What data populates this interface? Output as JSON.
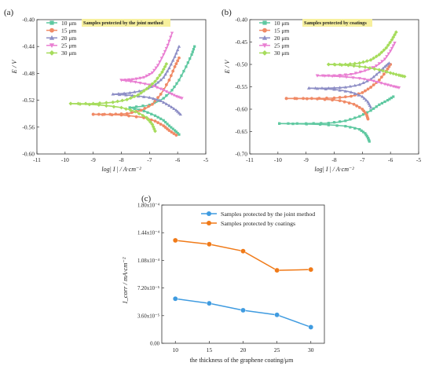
{
  "colors": {
    "s10": "#5ec8a0",
    "s15": "#f08a66",
    "s20": "#8e8fc6",
    "s25": "#e97fd2",
    "s30": "#a6dc5c",
    "blue": "#3f9be0",
    "orange": "#f07a18",
    "legend_bg": "#f7f09e"
  },
  "chart_data": [
    {
      "type": "line",
      "panel": "(a)",
      "title": "Samples protected by the joint method",
      "xlabel": "log| I | / A·cm⁻²",
      "ylabel": "E / V",
      "xlim": [
        -11,
        -5
      ],
      "ylim": [
        -0.6,
        -0.4
      ],
      "xticks": [
        "-11",
        "-10",
        "-9",
        "-8",
        "-7",
        "-6",
        "-5"
      ],
      "yticks": [
        "-0.60",
        "-0.56",
        "-0.52",
        "-0.48",
        "-0.44",
        "-0.40"
      ],
      "legend_position": "top-left",
      "series": [
        {
          "name": "10 μm",
          "color_key": "s10",
          "marker": "square",
          "anodic": [
            [
              -7.7,
              -0.531
            ],
            [
              -7.0,
              -0.527
            ],
            [
              -6.5,
              -0.517
            ],
            [
              -6.2,
              -0.505
            ],
            [
              -5.95,
              -0.49
            ],
            [
              -5.7,
              -0.47
            ],
            [
              -5.5,
              -0.452
            ],
            [
              -5.4,
              -0.44
            ]
          ],
          "cathodic": [
            [
              -7.7,
              -0.531
            ],
            [
              -7.2,
              -0.536
            ],
            [
              -6.8,
              -0.543
            ],
            [
              -6.5,
              -0.55
            ],
            [
              -6.3,
              -0.558
            ],
            [
              -6.1,
              -0.565
            ],
            [
              -5.95,
              -0.571
            ]
          ]
        },
        {
          "name": "15 μm",
          "color_key": "s15",
          "marker": "circle",
          "anodic": [
            [
              -9.0,
              -0.541
            ],
            [
              -8.4,
              -0.541
            ],
            [
              -7.8,
              -0.54
            ],
            [
              -7.3,
              -0.535
            ],
            [
              -6.9,
              -0.526
            ],
            [
              -6.6,
              -0.511
            ],
            [
              -6.3,
              -0.49
            ],
            [
              -6.1,
              -0.47
            ],
            [
              -5.95,
              -0.457
            ]
          ],
          "cathodic": [
            [
              -9.0,
              -0.541
            ],
            [
              -8.0,
              -0.542
            ],
            [
              -7.2,
              -0.546
            ],
            [
              -6.8,
              -0.551
            ],
            [
              -6.5,
              -0.558
            ],
            [
              -6.3,
              -0.565
            ],
            [
              -6.05,
              -0.572
            ]
          ]
        },
        {
          "name": "20 μm",
          "color_key": "s20",
          "marker": "triangle-up",
          "anodic": [
            [
              -8.3,
              -0.511
            ],
            [
              -7.7,
              -0.509
            ],
            [
              -7.2,
              -0.505
            ],
            [
              -6.8,
              -0.497
            ],
            [
              -6.5,
              -0.486
            ],
            [
              -6.3,
              -0.472
            ],
            [
              -6.1,
              -0.455
            ],
            [
              -5.95,
              -0.44
            ]
          ],
          "cathodic": [
            [
              -8.3,
              -0.511
            ],
            [
              -7.6,
              -0.513
            ],
            [
              -7.0,
              -0.516
            ],
            [
              -6.6,
              -0.521
            ],
            [
              -6.3,
              -0.528
            ],
            [
              -6.05,
              -0.535
            ],
            [
              -5.9,
              -0.541
            ]
          ]
        },
        {
          "name": "25 μm",
          "color_key": "s25",
          "marker": "triangle-down",
          "anodic": [
            [
              -8.0,
              -0.49
            ],
            [
              -7.6,
              -0.489
            ],
            [
              -7.2,
              -0.486
            ],
            [
              -6.9,
              -0.479
            ],
            [
              -6.7,
              -0.468
            ],
            [
              -6.5,
              -0.452
            ],
            [
              -6.35,
              -0.438
            ],
            [
              -6.2,
              -0.42
            ]
          ],
          "cathodic": [
            [
              -8.0,
              -0.49
            ],
            [
              -7.5,
              -0.493
            ],
            [
              -7.0,
              -0.497
            ],
            [
              -6.6,
              -0.503
            ],
            [
              -6.3,
              -0.509
            ],
            [
              -6.05,
              -0.514
            ],
            [
              -5.85,
              -0.517
            ]
          ]
        },
        {
          "name": "30 μm",
          "color_key": "s30",
          "marker": "diamond",
          "anodic": [
            [
              -9.8,
              -0.525
            ],
            [
              -9.0,
              -0.525
            ],
            [
              -8.3,
              -0.523
            ],
            [
              -7.8,
              -0.519
            ],
            [
              -7.4,
              -0.512
            ],
            [
              -7.1,
              -0.503
            ],
            [
              -6.8,
              -0.492
            ],
            [
              -6.55,
              -0.478
            ],
            [
              -6.4,
              -0.466
            ]
          ],
          "cathodic": [
            [
              -9.8,
              -0.525
            ],
            [
              -8.8,
              -0.527
            ],
            [
              -8.0,
              -0.531
            ],
            [
              -7.5,
              -0.537
            ],
            [
              -7.1,
              -0.546
            ],
            [
              -6.9,
              -0.556
            ],
            [
              -6.8,
              -0.566
            ]
          ]
        }
      ]
    },
    {
      "type": "line",
      "panel": "(b)",
      "title": "Samples protected by coatings",
      "xlabel": "log| I | / A·cm⁻²",
      "ylabel": "E / V",
      "xlim": [
        -11,
        -5
      ],
      "ylim": [
        -0.7,
        -0.4
      ],
      "xticks": [
        "-11",
        "-10",
        "-9",
        "-8",
        "-7",
        "-6",
        "-5"
      ],
      "yticks": [
        "-0.70",
        "-0.65",
        "-0.60",
        "-0.55",
        "-0.50",
        "-0.45",
        "-0.40"
      ],
      "legend_position": "top-left",
      "series": [
        {
          "name": "10 μm",
          "color_key": "s10",
          "marker": "square",
          "anodic": [
            [
              -9.95,
              -0.632
            ],
            [
              -9.0,
              -0.632
            ],
            [
              -8.2,
              -0.631
            ],
            [
              -7.6,
              -0.626
            ],
            [
              -7.1,
              -0.616
            ],
            [
              -6.7,
              -0.603
            ],
            [
              -6.4,
              -0.59
            ],
            [
              -6.1,
              -0.58
            ],
            [
              -5.9,
              -0.572
            ]
          ],
          "cathodic": [
            [
              -9.95,
              -0.632
            ],
            [
              -8.5,
              -0.634
            ],
            [
              -7.6,
              -0.638
            ],
            [
              -7.1,
              -0.645
            ],
            [
              -6.9,
              -0.654
            ],
            [
              -6.8,
              -0.664
            ],
            [
              -6.75,
              -0.672
            ]
          ]
        },
        {
          "name": "15 μm",
          "color_key": "s15",
          "marker": "circle",
          "anodic": [
            [
              -9.7,
              -0.576
            ],
            [
              -8.8,
              -0.576
            ],
            [
              -8.0,
              -0.575
            ],
            [
              -7.4,
              -0.571
            ],
            [
              -7.0,
              -0.563
            ],
            [
              -6.7,
              -0.551
            ],
            [
              -6.4,
              -0.535
            ],
            [
              -6.15,
              -0.515
            ],
            [
              -6.0,
              -0.5
            ]
          ],
          "cathodic": [
            [
              -9.7,
              -0.576
            ],
            [
              -8.6,
              -0.577
            ],
            [
              -7.8,
              -0.581
            ],
            [
              -7.3,
              -0.589
            ],
            [
              -7.0,
              -0.6
            ],
            [
              -6.85,
              -0.612
            ],
            [
              -6.8,
              -0.622
            ]
          ]
        },
        {
          "name": "20 μm",
          "color_key": "s20",
          "marker": "triangle-up",
          "anodic": [
            [
              -8.9,
              -0.553
            ],
            [
              -8.2,
              -0.553
            ],
            [
              -7.6,
              -0.551
            ],
            [
              -7.1,
              -0.545
            ],
            [
              -6.7,
              -0.533
            ],
            [
              -6.4,
              -0.517
            ],
            [
              -6.2,
              -0.505
            ],
            [
              -6.05,
              -0.497
            ]
          ],
          "cathodic": [
            [
              -8.9,
              -0.553
            ],
            [
              -8.0,
              -0.556
            ],
            [
              -7.4,
              -0.562
            ],
            [
              -7.0,
              -0.572
            ],
            [
              -6.8,
              -0.584
            ],
            [
              -6.7,
              -0.596
            ]
          ]
        },
        {
          "name": "25 μm",
          "color_key": "s25",
          "marker": "triangle-down",
          "anodic": [
            [
              -8.6,
              -0.525
            ],
            [
              -8.0,
              -0.525
            ],
            [
              -7.4,
              -0.522
            ],
            [
              -6.9,
              -0.514
            ],
            [
              -6.5,
              -0.503
            ],
            [
              -6.2,
              -0.488
            ],
            [
              -6.0,
              -0.47
            ],
            [
              -5.85,
              -0.452
            ]
          ],
          "cathodic": [
            [
              -8.6,
              -0.525
            ],
            [
              -7.8,
              -0.527
            ],
            [
              -7.1,
              -0.531
            ],
            [
              -6.6,
              -0.537
            ],
            [
              -6.2,
              -0.544
            ],
            [
              -5.9,
              -0.549
            ],
            [
              -5.7,
              -0.552
            ]
          ]
        },
        {
          "name": "30 μm",
          "color_key": "s30",
          "marker": "diamond",
          "anodic": [
            [
              -8.2,
              -0.5
            ],
            [
              -7.6,
              -0.5
            ],
            [
              -7.1,
              -0.497
            ],
            [
              -6.7,
              -0.49
            ],
            [
              -6.4,
              -0.478
            ],
            [
              -6.15,
              -0.463
            ],
            [
              -5.95,
              -0.445
            ],
            [
              -5.8,
              -0.428
            ]
          ],
          "cathodic": [
            [
              -8.2,
              -0.5
            ],
            [
              -7.5,
              -0.502
            ],
            [
              -6.9,
              -0.506
            ],
            [
              -6.4,
              -0.512
            ],
            [
              -6.0,
              -0.519
            ],
            [
              -5.7,
              -0.524
            ],
            [
              -5.5,
              -0.527
            ]
          ]
        }
      ]
    },
    {
      "type": "line",
      "panel": "(c)",
      "title": "",
      "xlabel": "the thickness of the graphene coating/μm",
      "ylabel": "I_corr / mA·cm⁻²",
      "xlim": [
        8,
        32
      ],
      "ylim": [
        0,
        0.00018
      ],
      "xticks": [
        "10",
        "15",
        "20",
        "25",
        "30"
      ],
      "yticks": [
        "0.00",
        "3.60x10⁻⁵",
        "7.20x10⁻⁵",
        "1.08x10⁻⁴",
        "1.44x10⁻⁴",
        "1.80x10⁻⁴"
      ],
      "legend_position": "top",
      "x": [
        10,
        15,
        20,
        25,
        30
      ],
      "series": [
        {
          "name": "Samples protected by the joint method",
          "color_key": "blue",
          "values": [
            5.8e-05,
            5.2e-05,
            4.3e-05,
            3.7e-05,
            2.1e-05
          ]
        },
        {
          "name": "Samples protected by coatings",
          "color_key": "orange",
          "values": [
            0.000134,
            0.000129,
            0.00012,
            9.5e-05,
            9.6e-05
          ]
        }
      ]
    }
  ]
}
